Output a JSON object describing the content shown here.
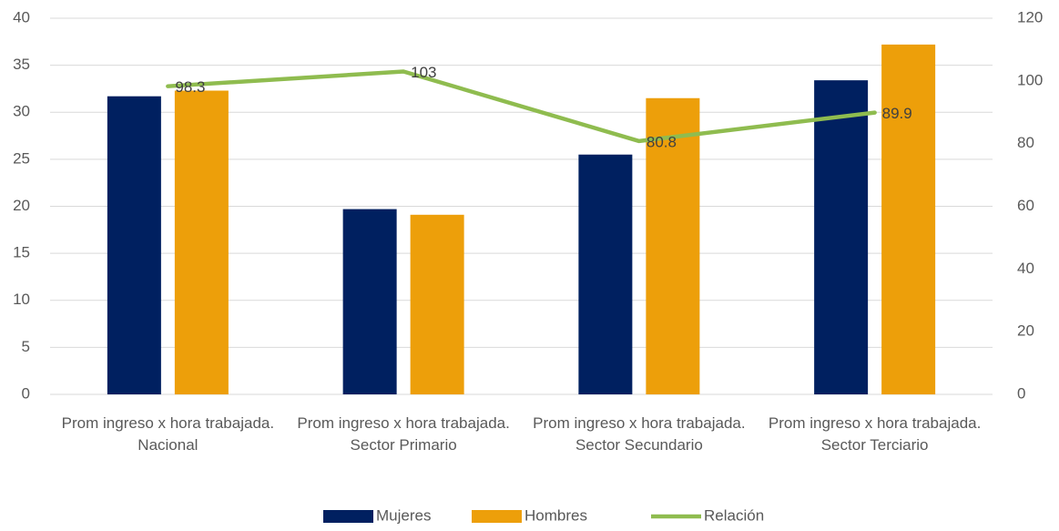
{
  "chart_data": {
    "type": "bar_line",
    "categories": [
      "Prom ingreso x hora trabajada. Nacional",
      "Prom ingreso x hora trabajada. Sector Primario",
      "Prom ingreso x hora trabajada. Sector Secundario",
      "Prom ingreso x hora trabajada. Sector Terciario"
    ],
    "series": [
      {
        "name": "Mujeres",
        "type": "bar",
        "color": "#002060",
        "values": [
          31.7,
          19.7,
          25.5,
          33.4
        ]
      },
      {
        "name": "Hombres",
        "type": "bar",
        "color": "#ed9f0a",
        "values": [
          32.3,
          19.1,
          31.5,
          37.2
        ]
      },
      {
        "name": "Relación",
        "type": "line",
        "axis": "y2",
        "color": "#8fbc4f",
        "values": [
          98.3,
          103,
          80.8,
          89.9
        ]
      }
    ],
    "ylim": [
      0,
      40
    ],
    "yticks": [
      0,
      5,
      10,
      15,
      20,
      25,
      30,
      35,
      40
    ],
    "y2lim": [
      0,
      120
    ],
    "y2ticks": [
      0,
      20,
      40,
      60,
      80,
      100,
      120
    ],
    "grid": true,
    "legend": "bottom"
  }
}
